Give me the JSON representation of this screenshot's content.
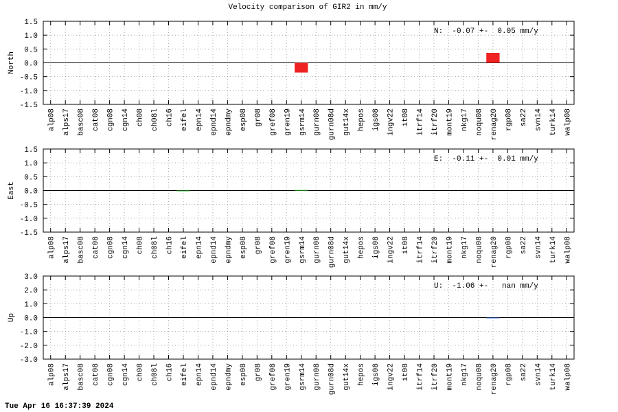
{
  "title": "Velocity comparison of GIR2 in mm/y",
  "footer": "Tue Apr 16 16:37:39 2024",
  "chart_data": [
    {
      "type": "bar",
      "ylabel": "North",
      "annotation": "N:  -0.07 +-  0.05 mm/y",
      "color": "#ee2222",
      "categories": [
        "alp08",
        "alps17",
        "basc08",
        "cat08",
        "cgn08",
        "cgn14",
        "ch08",
        "ch08l",
        "ch16",
        "eifel",
        "epn14",
        "epnd14",
        "epndmy",
        "esp08",
        "gr08",
        "gref08",
        "gren19",
        "gsrm14",
        "gurn08",
        "gurn08d",
        "gut14x",
        "hepos",
        "igs08",
        "ingv22",
        "it08",
        "itrf14",
        "itrf20",
        "mont19",
        "nkg17",
        "noqu08",
        "renag20",
        "rgp08",
        "sa22",
        "svn14",
        "turk14",
        "walp08"
      ],
      "values": [
        null,
        null,
        null,
        null,
        null,
        null,
        null,
        null,
        null,
        null,
        null,
        null,
        null,
        null,
        null,
        null,
        null,
        -0.35,
        null,
        null,
        null,
        null,
        null,
        null,
        null,
        null,
        null,
        null,
        null,
        null,
        0.36,
        null,
        null,
        null,
        null,
        null
      ],
      "ylim": [
        -1.5,
        1.5
      ],
      "yticks": [
        -1.5,
        {
          "value": -1,
          "label": "-1.0"
        },
        -0.5,
        {
          "value": 0,
          "label": "0.0"
        },
        0.5,
        {
          "value": 1,
          "label": "1.0"
        },
        1.5
      ],
      "grid": true
    },
    {
      "type": "bar",
      "ylabel": "East",
      "annotation": "E:  -0.11 +-  0.01 mm/y",
      "color": "#22aa22",
      "categories": [
        "alp08",
        "alps17",
        "basc08",
        "cat08",
        "cgn08",
        "cgn14",
        "ch08",
        "ch08l",
        "ch16",
        "eifel",
        "epn14",
        "epnd14",
        "epndmy",
        "esp08",
        "gr08",
        "gref08",
        "gren19",
        "gsrm14",
        "gurn08",
        "gurn08d",
        "gut14x",
        "hepos",
        "igs08",
        "ingv22",
        "it08",
        "itrf14",
        "itrf20",
        "mont19",
        "nkg17",
        "noqu08",
        "renag20",
        "rgp08",
        "sa22",
        "svn14",
        "turk14",
        "walp08"
      ],
      "values": [
        null,
        null,
        null,
        null,
        null,
        null,
        null,
        null,
        null,
        -0.02,
        null,
        null,
        null,
        null,
        null,
        null,
        null,
        0.02,
        null,
        null,
        null,
        null,
        null,
        null,
        null,
        null,
        null,
        null,
        null,
        null,
        null,
        null,
        null,
        null,
        null,
        null
      ],
      "ylim": [
        -1.5,
        1.5
      ],
      "yticks": [
        -1.5,
        {
          "value": -1,
          "label": "-1.0"
        },
        -0.5,
        {
          "value": 0,
          "label": "0.0"
        },
        0.5,
        {
          "value": 1,
          "label": "1.0"
        },
        1.5
      ],
      "grid": true
    },
    {
      "type": "bar",
      "ylabel": "Up",
      "annotation": "U:  -1.06 +-   nan mm/y",
      "color": "#2255cc",
      "categories": [
        "alp08",
        "alps17",
        "basc08",
        "cat08",
        "cgn08",
        "cgn14",
        "ch08",
        "ch08l",
        "ch16",
        "eifel",
        "epn14",
        "epnd14",
        "epndmy",
        "esp08",
        "gr08",
        "gref08",
        "gren19",
        "gsrm14",
        "gurn08",
        "gurn08d",
        "gut14x",
        "hepos",
        "igs08",
        "ingv22",
        "it08",
        "itrf14",
        "itrf20",
        "mont19",
        "nkg17",
        "noqu08",
        "renag20",
        "rgp08",
        "sa22",
        "svn14",
        "turk14",
        "walp08"
      ],
      "values": [
        null,
        null,
        null,
        null,
        null,
        null,
        null,
        null,
        null,
        null,
        null,
        null,
        null,
        null,
        null,
        null,
        null,
        null,
        null,
        null,
        null,
        null,
        null,
        null,
        null,
        null,
        null,
        null,
        null,
        null,
        -0.05,
        null,
        null,
        null,
        null,
        null
      ],
      "ylim": [
        -3,
        3
      ],
      "yticks": [
        {
          "value": -3,
          "label": "-3.0"
        },
        {
          "value": -2,
          "label": "-2.0"
        },
        {
          "value": -1,
          "label": "-1.0"
        },
        {
          "value": 0,
          "label": "0.0"
        },
        {
          "value": 1,
          "label": "1.0"
        },
        {
          "value": 2,
          "label": "2.0"
        },
        {
          "value": 3,
          "label": "3.0"
        }
      ],
      "grid": true
    }
  ]
}
